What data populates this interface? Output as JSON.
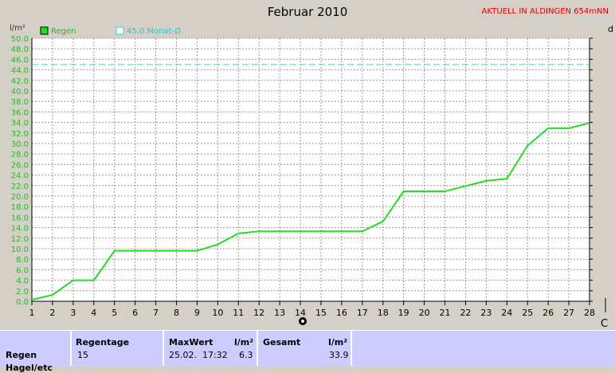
{
  "header": {
    "title": "Februar 2010",
    "subtitle": "AKTUELL IN ALDINGEN 654mNN"
  },
  "chart_data": {
    "type": "line",
    "ylabel": "l/m²",
    "ylim": [
      0,
      50
    ],
    "yticks": [
      "0.0",
      "2.0",
      "4.0",
      "6.0",
      "8.0",
      "10.0",
      "12.0",
      "14.0",
      "16.0",
      "18.0",
      "20.0",
      "22.0",
      "24.0",
      "26.0",
      "28.0",
      "30.0",
      "32.0",
      "34.0",
      "36.0",
      "38.0",
      "40.0",
      "42.0",
      "44.0",
      "46.0",
      "48.0",
      "50.0"
    ],
    "x": [
      1,
      2,
      3,
      4,
      5,
      6,
      7,
      8,
      9,
      10,
      11,
      12,
      13,
      14,
      15,
      16,
      17,
      18,
      19,
      20,
      21,
      22,
      23,
      24,
      25,
      26,
      27,
      28
    ],
    "xticks": [
      "1",
      "2",
      "3",
      "4",
      "5",
      "6",
      "7",
      "8",
      "9",
      "10",
      "11",
      "12",
      "13",
      "14",
      "15",
      "16",
      "17",
      "18",
      "19",
      "20",
      "21",
      "22",
      "23",
      "24",
      "25",
      "26",
      "27",
      "28"
    ],
    "series": [
      {
        "name": "Regen",
        "color": "#22dd22",
        "values": [
          0.3,
          1.2,
          4.0,
          4.0,
          9.6,
          9.6,
          9.6,
          9.6,
          9.6,
          10.8,
          12.9,
          13.3,
          13.3,
          13.3,
          13.3,
          13.3,
          13.3,
          15.2,
          20.9,
          20.9,
          20.9,
          21.9,
          22.9,
          23.3,
          29.6,
          32.9,
          32.9,
          33.9
        ]
      }
    ],
    "reference": {
      "name": "45.0 Monat-Ø",
      "value": 45.0,
      "color": "#22dddd"
    },
    "grid": true,
    "legend": "top-left",
    "right_labels": {
      "top": "d",
      "bottom": "C"
    }
  },
  "stats": {
    "row_label": "Regen",
    "row_label2": "Hagel/etc",
    "regentage_label": "Regentage",
    "regentage_value": "15",
    "maxwert_label": "MaxWert",
    "maxwert_unit": "l/m²",
    "maxwert_time": "25.02.  17:32",
    "maxwert_value": "6.3",
    "gesamt_label": "Gesamt",
    "gesamt_unit": "l/m²",
    "gesamt_value": "33.9"
  }
}
